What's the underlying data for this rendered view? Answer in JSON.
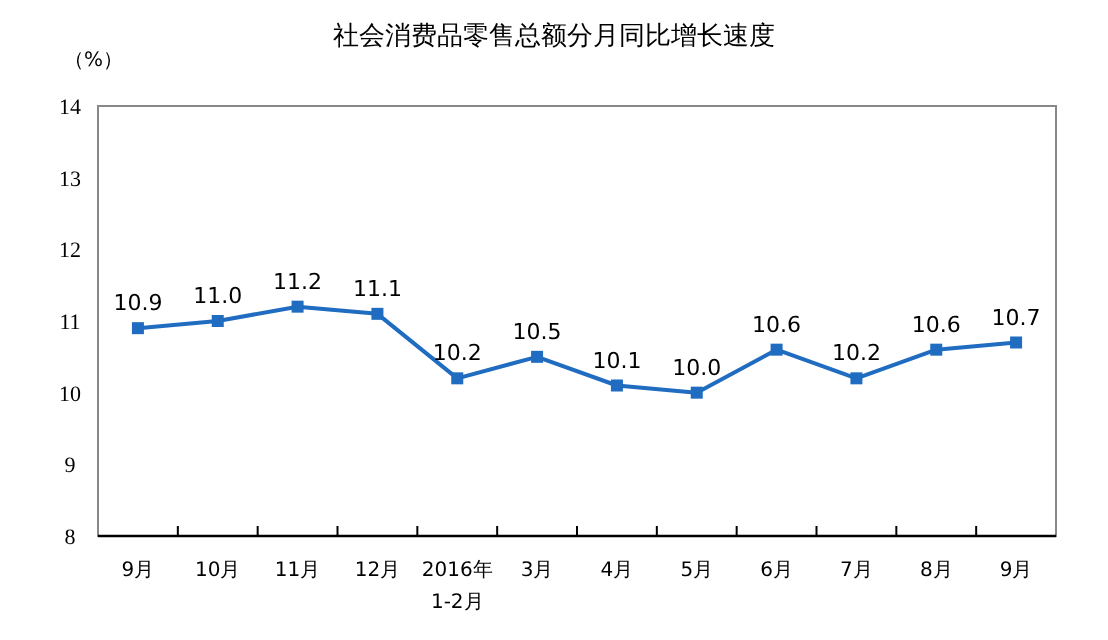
{
  "chart_data": {
    "type": "line",
    "title": "社会消费品零售总额分月同比增长速度",
    "ylabel": "（%）",
    "categories": [
      "9月",
      "10月",
      "11月",
      "12月",
      "2016年\n1-2月",
      "3月",
      "4月",
      "5月",
      "6月",
      "7月",
      "8月",
      "9月"
    ],
    "values": [
      10.9,
      11.0,
      11.2,
      11.1,
      10.2,
      10.5,
      10.1,
      10.0,
      10.6,
      10.2,
      10.6,
      10.7
    ],
    "value_labels": [
      "10.9",
      "11.0",
      "11.2",
      "11.1",
      "10.2",
      "10.5",
      "10.1",
      "10.0",
      "10.6",
      "10.2",
      "10.6",
      "10.7"
    ],
    "color": "#1f6cc0",
    "marker": "square",
    "line_style": "solid",
    "grid": false,
    "ylim": [
      8,
      14
    ],
    "yticks": [
      8,
      9,
      10,
      11,
      12,
      13,
      14
    ]
  }
}
